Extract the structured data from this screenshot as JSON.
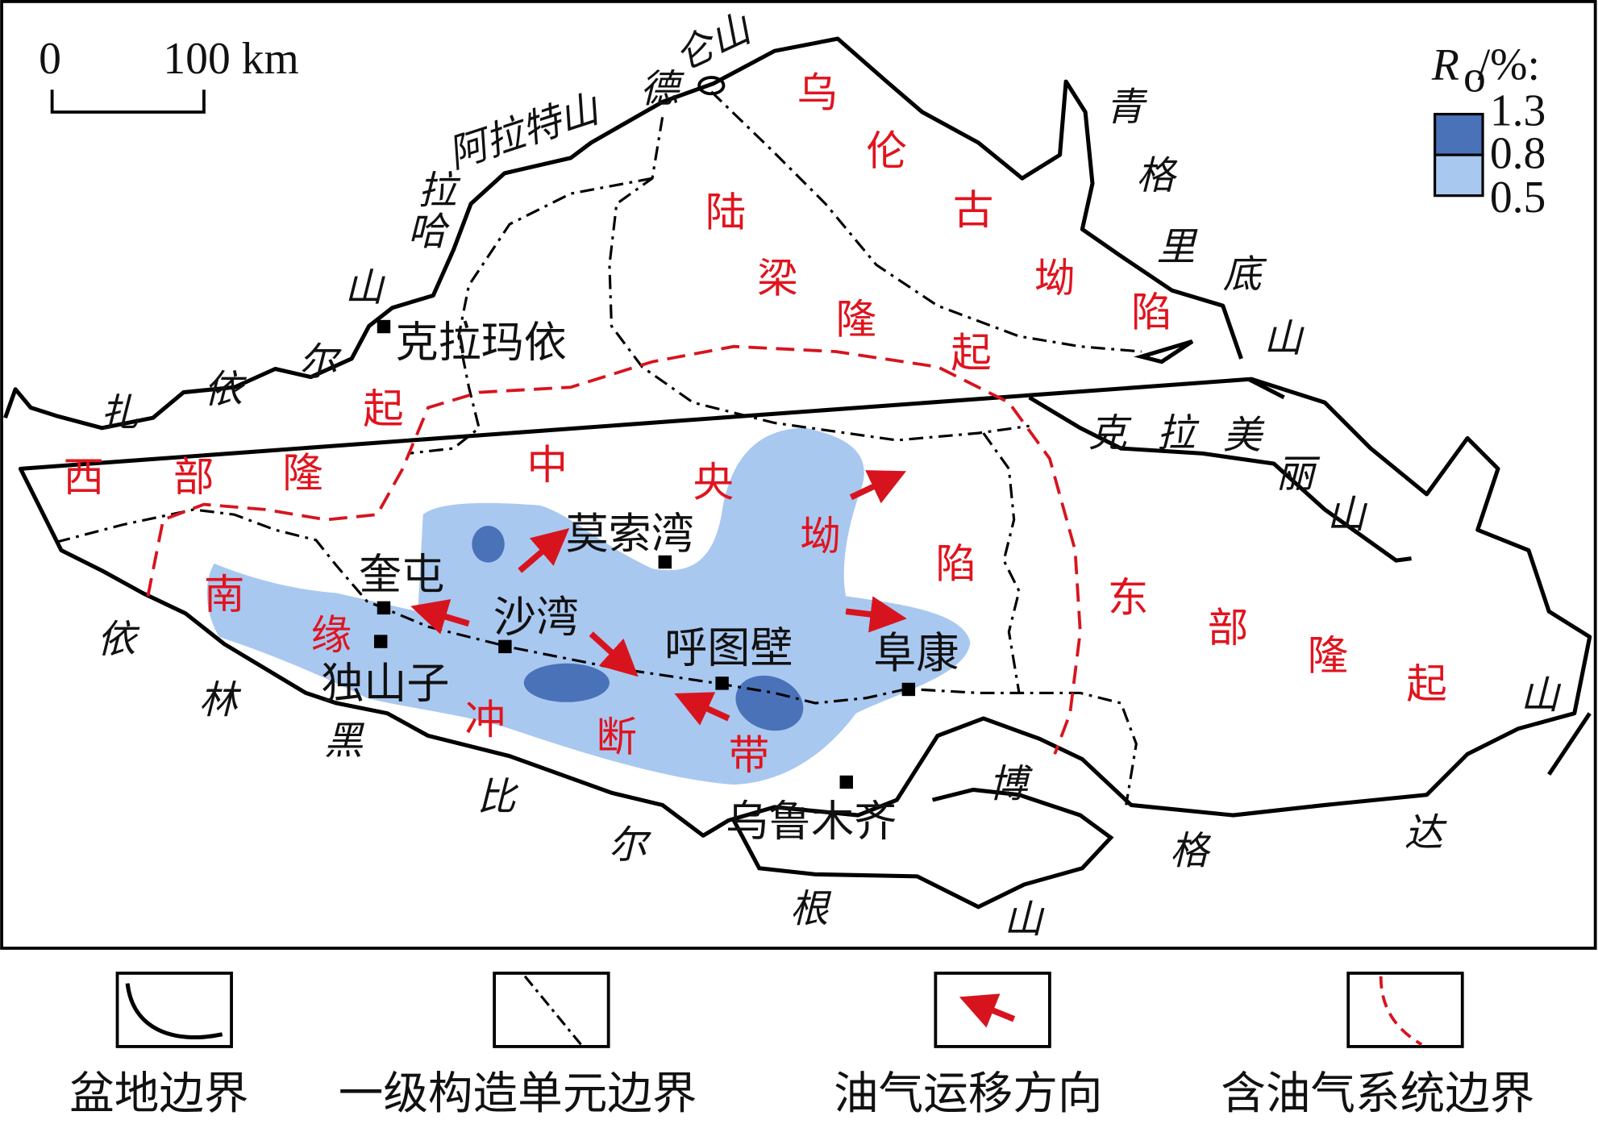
{
  "scale_bar": {
    "start": "0",
    "end": "100 km"
  },
  "ro_legend": {
    "title_main": "R",
    "title_sub": "o",
    "title_rest": "/%:",
    "levels": [
      "1.3",
      "0.8",
      "0.5"
    ],
    "colors": {
      "high": "#4a72b8",
      "low": "#a9c8f0"
    }
  },
  "colors": {
    "basin_boundary": "#000000",
    "unit_boundary": "#000000",
    "migration_arrow": "#d7141e",
    "petroleum_system_boundary": "#d7141e",
    "region_label": "#e0141e"
  },
  "mountains": {
    "delun": [
      "德",
      "仑山"
    ],
    "alate": "阿拉特山",
    "laha": [
      "拉",
      "哈",
      "山"
    ],
    "zhayier": [
      "尔",
      "依",
      "扎"
    ],
    "yilin_heibi": [
      "依",
      "林",
      "黑",
      "比",
      "尔",
      "根",
      "山"
    ],
    "bogeda": [
      "博",
      "格",
      "达",
      "山"
    ],
    "qinggeli": [
      "青",
      "格",
      "里",
      "底",
      "山"
    ],
    "kelameili": [
      "克",
      "拉",
      "美",
      "丽",
      "山"
    ]
  },
  "regions": {
    "wulungu": [
      "乌",
      "伦",
      "古",
      "坳",
      "陷"
    ],
    "luliang": [
      "陆",
      "梁",
      "隆",
      "起"
    ],
    "western": [
      "西",
      "部",
      "隆",
      "起"
    ],
    "central": [
      "中",
      "央",
      "坳",
      "陷"
    ],
    "southern": [
      "南",
      "缘",
      "冲",
      "断",
      "带"
    ],
    "eastern": [
      "东",
      "部",
      "隆",
      "起"
    ]
  },
  "cities": [
    "克拉玛依",
    "莫索湾",
    "奎屯",
    "独山子",
    "沙湾",
    "呼图壁",
    "阜康",
    "乌鲁木齐"
  ],
  "legend": [
    "盆地边界",
    "一级构造单元边界",
    "油气运移方向",
    "含油气系统边界"
  ]
}
